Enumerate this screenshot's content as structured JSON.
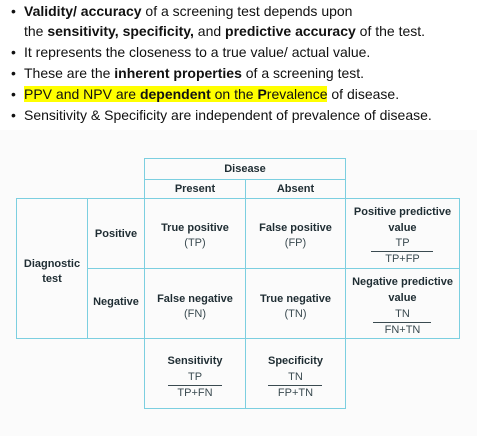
{
  "bullets": {
    "b1_bold": "Validity/ accuracy",
    "b1_text": " of a screening test depends upon",
    "b1c_pre": "the ",
    "b1c_bold1": "sensitivity, specificity,",
    "b1c_mid": " and ",
    "b1c_bold2": "predictive accuracy",
    "b1c_post": " of the test.",
    "b2": "It represents the closeness to a true value/ actual value.",
    "b3_pre": "These are the ",
    "b3_bold": "inherent properties",
    "b3_post": " of a screening test.",
    "b4_hl1": "PPV and NPV are ",
    "b4_hl2": "dependent",
    "b4_hl3": " on the ",
    "b4_hl4": "P",
    "b4_hl5": "revalence",
    "b4_post": " of disease.",
    "b5": "Sensitivity & Specificity are independent of prevalence of disease."
  },
  "table": {
    "disease_header": "Disease",
    "present": "Present",
    "absent": "Absent",
    "diagnostic": "Diagnostic",
    "test": "test",
    "positive": "Positive",
    "negative": "Negative",
    "tp_label": "True positive",
    "tp_abbr": "(TP)",
    "fp_label": "False positive",
    "fp_abbr": "(FP)",
    "fn_label": "False negative",
    "fn_abbr": "(FN)",
    "tn_label": "True negative",
    "tn_abbr": "(TN)",
    "ppv_title1": "Positive predictive",
    "ppv_title2": "value",
    "ppv_num": "TP",
    "ppv_den": "TP+FP",
    "npv_title1": "Negative predictive",
    "npv_title2": "value",
    "npv_num": "TN",
    "npv_den": "FN+TN",
    "sens_title": "Sensitivity",
    "sens_num": "TP",
    "sens_den": "TP+FN",
    "spec_title": "Specificity",
    "spec_num": "TN",
    "spec_den": "FP+TN",
    "grid_color": "#7ccfe0"
  }
}
